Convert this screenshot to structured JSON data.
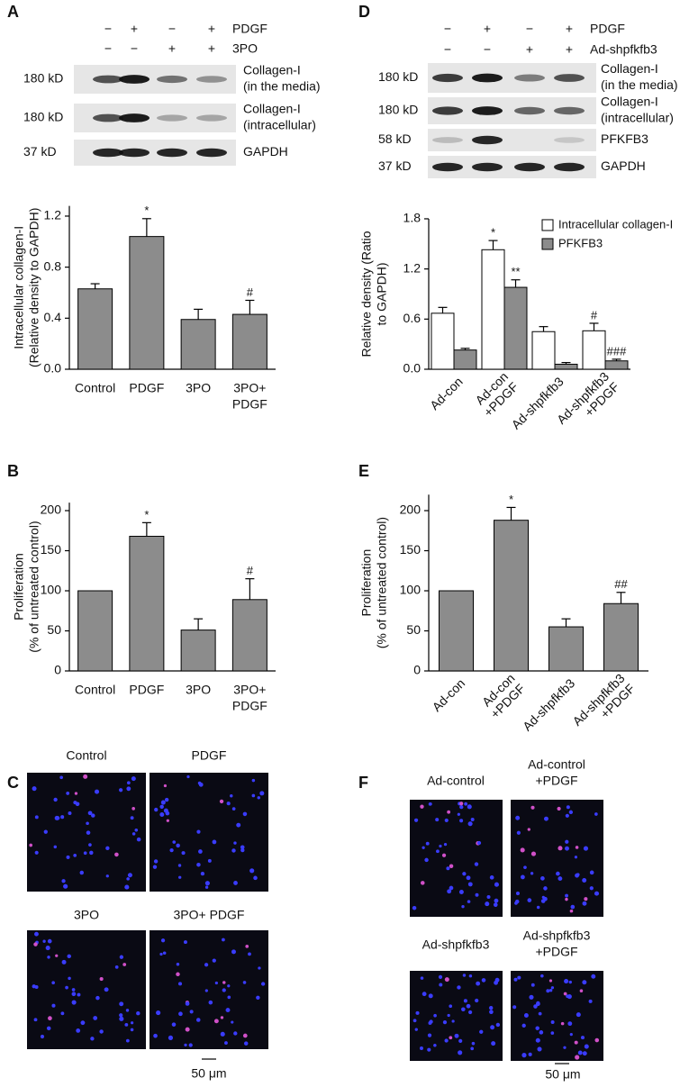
{
  "panel_labels": [
    "A",
    "B",
    "C",
    "D",
    "E",
    "F"
  ],
  "blots": [
    {
      "treatments": [
        {
          "name": "PDGF",
          "signs": [
            "−",
            "+",
            "−",
            "+"
          ]
        },
        {
          "name": "3PO",
          "signs": [
            "−",
            "−",
            "+",
            "+"
          ]
        }
      ],
      "rows": [
        {
          "size": "180 kD",
          "label": [
            "Collagen-I",
            "(in the media)"
          ]
        },
        {
          "size": "180 kD",
          "label": [
            "Collagen-I",
            "(intracellular)"
          ]
        },
        {
          "size": "37 kD",
          "label": [
            "GAPDH"
          ]
        }
      ]
    },
    {
      "treatments": [
        {
          "name": "PDGF",
          "signs": [
            "−",
            "+",
            "−",
            "+"
          ]
        },
        {
          "name": "Ad-shpfkfb3",
          "signs": [
            "−",
            "−",
            "+",
            "+"
          ]
        }
      ],
      "rows": [
        {
          "size": "180 kD",
          "label": [
            "Collagen-I",
            "(in the media)"
          ]
        },
        {
          "size": "180 kD",
          "label": [
            "Collagen-I",
            "(intracellular)"
          ]
        },
        {
          "size": "58 kD",
          "label": [
            "PFKFB3"
          ]
        },
        {
          "size": "37 kD",
          "label": [
            "GAPDH"
          ]
        }
      ]
    }
  ],
  "chart_data": [
    {
      "type": "bar",
      "ylabel": [
        "Intracellular collagen-I",
        "(Relative density to GAPDH)"
      ],
      "categories": [
        [
          "Control"
        ],
        [
          "PDGF"
        ],
        [
          "3PO"
        ],
        [
          "3PO+",
          "PDGF"
        ]
      ],
      "values": [
        0.63,
        1.04,
        0.39,
        0.43
      ],
      "errors": [
        0.04,
        0.14,
        0.08,
        0.11
      ],
      "markers": [
        null,
        "*",
        null,
        "#"
      ],
      "color": "#8c8c8c",
      "ylim": [
        0,
        1.28
      ],
      "yticks": [
        {
          "value": 0,
          "label": "0.0"
        },
        0.4,
        0.8,
        1.2
      ]
    },
    {
      "type": "bar",
      "ylabel": [
        "Proliferation",
        "(% of untreated control)"
      ],
      "categories": [
        [
          "Control"
        ],
        [
          "PDGF"
        ],
        [
          "3PO"
        ],
        [
          "3PO+",
          "PDGF"
        ]
      ],
      "values": [
        100,
        168,
        51,
        89
      ],
      "errors": [
        null,
        17,
        14,
        26
      ],
      "markers": [
        null,
        "*",
        null,
        "#"
      ],
      "color": "#8c8c8c",
      "ylim": [
        0,
        210
      ],
      "yticks": [
        0,
        50,
        100,
        150,
        200
      ]
    },
    {
      "type": "grouped_bar",
      "ylabel": [
        "Relative density (Ratio",
        "to GAPDH)"
      ],
      "categories": [
        [
          "Ad-con"
        ],
        [
          "Ad-con",
          "+PDGF"
        ],
        [
          "Ad-shpfkfb3"
        ],
        [
          "Ad-shpfkfb3",
          "+PDGF"
        ]
      ],
      "series": [
        {
          "name": "Intracellular collagen-I",
          "color": "#ffffff",
          "values": [
            0.67,
            1.43,
            0.45,
            0.46
          ],
          "errors": [
            0.07,
            0.11,
            0.06,
            0.09
          ],
          "markers": [
            null,
            "*",
            null,
            "#"
          ]
        },
        {
          "name": "PFKFB3",
          "color": "#8c8c8c",
          "values": [
            0.23,
            0.98,
            0.06,
            0.1
          ],
          "errors": [
            0.02,
            0.09,
            0.02,
            0.02
          ],
          "markers": [
            null,
            "**",
            null,
            "###"
          ]
        }
      ],
      "legend": "upper right",
      "ylim": [
        0,
        1.8
      ],
      "yticks": [
        {
          "value": 0,
          "label": "0.0"
        },
        0.6,
        1.2,
        1.8
      ]
    },
    {
      "type": "bar",
      "ylabel": [
        "Proliferation",
        "(% of untreated control)"
      ],
      "categories": [
        [
          "Ad-con"
        ],
        [
          "Ad-con",
          "+PDGF"
        ],
        [
          "Ad-shpfkfb3"
        ],
        [
          "Ad-shpfkfb3",
          "+PDGF"
        ]
      ],
      "values": [
        100,
        188,
        55,
        84
      ],
      "errors": [
        null,
        16,
        10,
        14
      ],
      "markers": [
        null,
        "*",
        null,
        "##"
      ],
      "color": "#8c8c8c",
      "ylim": [
        0,
        220
      ],
      "yticks": [
        0,
        50,
        100,
        150,
        200
      ]
    }
  ],
  "micrographs": [
    {
      "labels": [
        [
          "Control"
        ],
        [
          "PDGF"
        ],
        [
          "3PO"
        ],
        [
          "3PO+ PDGF"
        ]
      ],
      "scale_bar": "50 μm"
    },
    {
      "labels": [
        [
          "Ad-control"
        ],
        [
          "Ad-control",
          "+PDGF"
        ],
        [
          "Ad-shpfkfb3"
        ],
        [
          "Ad-shpfkfb3",
          "+PDGF"
        ]
      ],
      "scale_bar": "50 μm"
    }
  ]
}
